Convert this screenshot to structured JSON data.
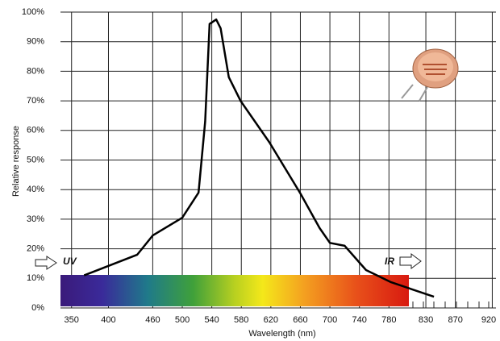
{
  "chart_data": {
    "type": "line",
    "xlabel": "Wavelength (nm)",
    "ylabel": "Relative response",
    "annotations": [
      "UV",
      "IR"
    ],
    "x": [
      367,
      439,
      460,
      500,
      522,
      531,
      537,
      546,
      552,
      563,
      579,
      618,
      660,
      686,
      700,
      720,
      749,
      783,
      841
    ],
    "values": [
      11,
      18,
      24.5,
      30.5,
      39,
      63,
      96,
      97.5,
      94.5,
      78,
      70,
      56,
      38.7,
      27,
      22,
      21,
      12.8,
      8.7,
      3.8
    ],
    "color": "#000000",
    "xlim": [
      335,
      925
    ],
    "xticks": [
      350,
      400,
      460,
      500,
      540,
      580,
      620,
      660,
      700,
      740,
      780,
      830,
      870,
      920
    ],
    "ylim": [
      0,
      100
    ],
    "yticks": [
      {
        "value": 0,
        "label": "0%"
      },
      {
        "value": 10,
        "label": "10%"
      },
      {
        "value": 20,
        "label": "20%"
      },
      {
        "value": 30,
        "label": "30%"
      },
      {
        "value": 40,
        "label": "40%"
      },
      {
        "value": 50,
        "label": "50%"
      },
      {
        "value": 60,
        "label": "60%"
      },
      {
        "value": 70,
        "label": "70%"
      },
      {
        "value": 80,
        "label": "80%"
      },
      {
        "value": 90,
        "label": "90%"
      },
      {
        "value": 100,
        "label": "100%"
      }
    ],
    "grid": true
  }
}
